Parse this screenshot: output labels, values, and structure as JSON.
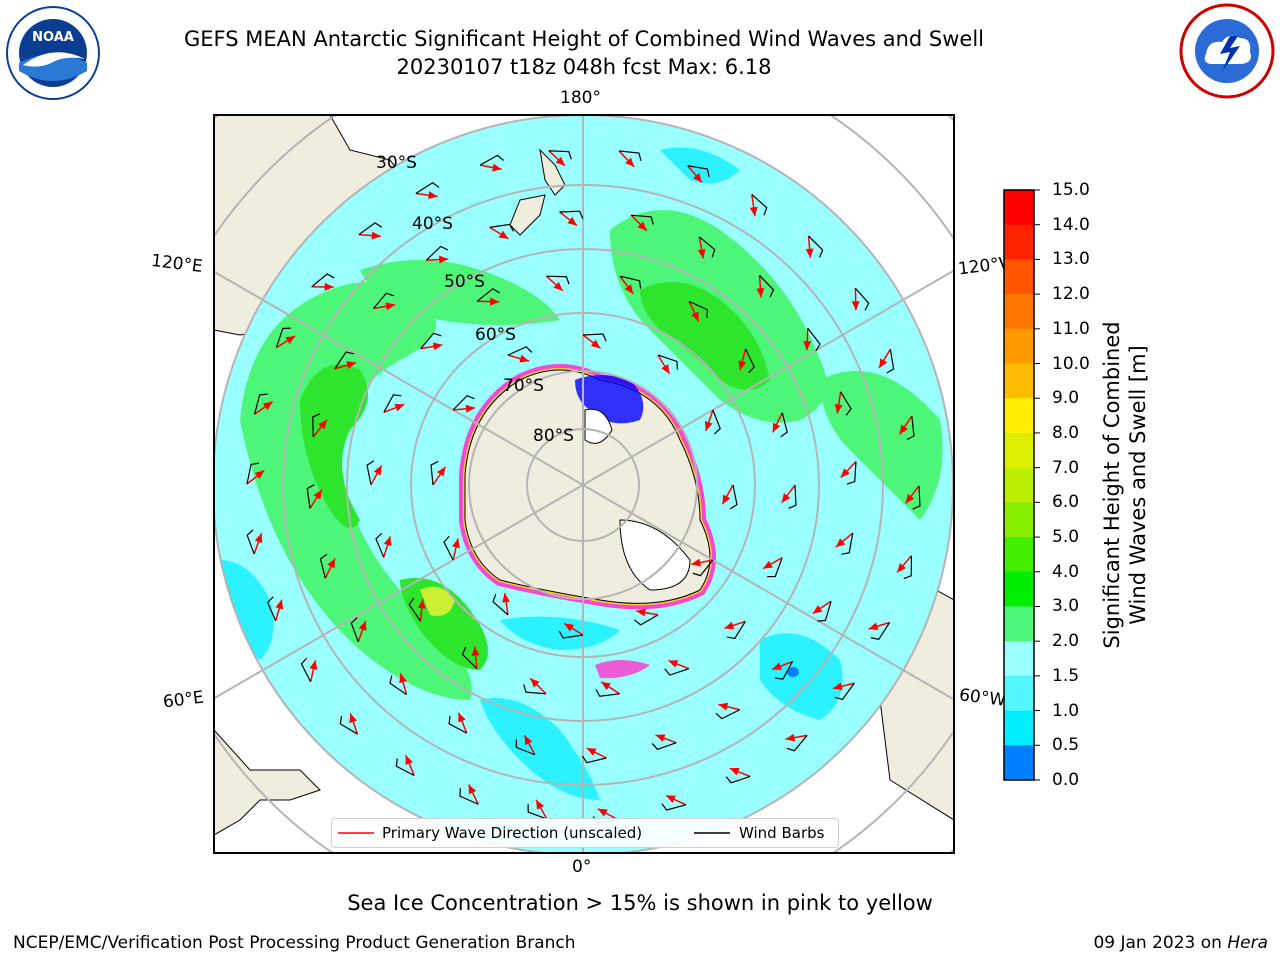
{
  "header": {
    "title_line1": "GEFS MEAN Antarctic Significant Height of Combined Wind Waves and Swell",
    "title_line2": "20230107 t18z 048h fcst   Max: 6.18"
  },
  "map": {
    "lon_labels": {
      "top": "180°",
      "bottom": "0°",
      "upper_left": "120°E",
      "upper_right": "120°W",
      "lower_left": "60°E",
      "lower_right": "60°W"
    },
    "lat_labels": [
      "30°S",
      "40°S",
      "50°S",
      "60°S",
      "70°S",
      "80°S"
    ],
    "colors": {
      "land": "#efedde",
      "ocean_low": "#99ffff",
      "ocean_mid": "#2cf2ff",
      "green_light": "#4df578",
      "green_mid": "#2ee52e",
      "ice_pink": "#ff33cc",
      "ice_yellow": "#ffcc33",
      "arrow": "#ff0000",
      "barb": "#000000",
      "grid": "#b4b4b4"
    }
  },
  "legend": {
    "primary": "Primary Wave Direction (unscaled)",
    "barbs": "Wind Barbs"
  },
  "colorbar": {
    "label_line1": "Significant Height of Combined",
    "label_line2": "Wind Waves and Swell [m]",
    "ticks": [
      "15.0",
      "14.0",
      "13.0",
      "12.0",
      "11.0",
      "10.0",
      "9.0",
      "8.0",
      "7.0",
      "6.0",
      "5.0",
      "4.0",
      "3.0",
      "2.0",
      "1.5",
      "1.0",
      "0.5",
      "0.0"
    ],
    "colors": [
      "#ff0000",
      "#ff2200",
      "#ff5500",
      "#ff7700",
      "#ff9900",
      "#ffbb00",
      "#ffee00",
      "#ddee00",
      "#bbee00",
      "#88ee00",
      "#44ee00",
      "#00ee00",
      "#4df578",
      "#99ffff",
      "#55f5ff",
      "#00eeff",
      "#0080ff",
      "#0000ff"
    ]
  },
  "caption": "Sea Ice Concentration > 15% is shown in pink to yellow",
  "footer": {
    "left": "NCEP/EMC/Verification Post Processing Product Generation Branch",
    "date": "09 Jan 2023 on ",
    "machine": "Hera"
  },
  "logos": {
    "left": "NOAA",
    "right": "NATIONAL WEATHER SERVICE"
  }
}
